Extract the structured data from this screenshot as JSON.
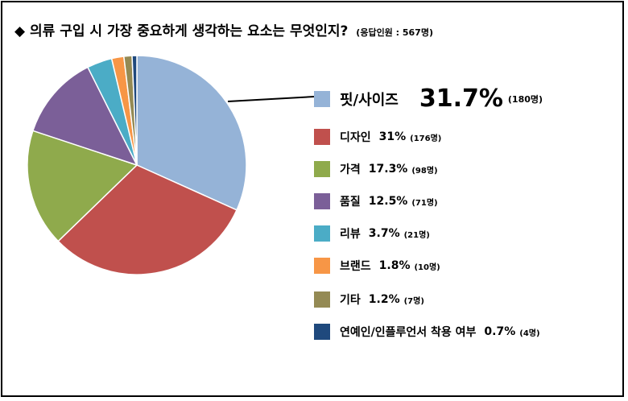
{
  "title": {
    "text": "◆ 의류 구입 시 가장 중요하게 생각하는 요소는 무엇인지?",
    "subtitle": "(응답인원 : 567명)"
  },
  "chart_data": {
    "type": "pie",
    "title": "◆ 의류 구입 시 가장 중요하게 생각하는 요소는 무엇인지?",
    "subtitle": "(응답인원 : 567명)",
    "legend_position": "right",
    "slices": [
      {
        "label": "핏/사이즈",
        "value": 31.7,
        "pct_text": "31.7%",
        "count_text": "(180명)",
        "color": "#95B3D7"
      },
      {
        "label": "디자인",
        "value": 31.0,
        "pct_text": "31%",
        "count_text": "(176명)",
        "color": "#C0504D"
      },
      {
        "label": "가격",
        "value": 17.3,
        "pct_text": "17.3%",
        "count_text": "(98명)",
        "color": "#8FAA4C"
      },
      {
        "label": "품질",
        "value": 12.5,
        "pct_text": "12.5%",
        "count_text": "(71명)",
        "color": "#7B5F98"
      },
      {
        "label": "리뷰",
        "value": 3.7,
        "pct_text": "3.7%",
        "count_text": "(21명)",
        "color": "#4BACC6"
      },
      {
        "label": "브랜드",
        "value": 1.8,
        "pct_text": "1.8%",
        "count_text": "(10명)",
        "color": "#F79646"
      },
      {
        "label": "기타",
        "value": 1.2,
        "pct_text": "1.2%",
        "count_text": "(7명)",
        "color": "#948A54"
      },
      {
        "label": "연예인/인플루언서 착용 여부",
        "value": 0.7,
        "pct_text": "0.7%",
        "count_text": "(4명)",
        "color": "#1F497D"
      }
    ]
  }
}
